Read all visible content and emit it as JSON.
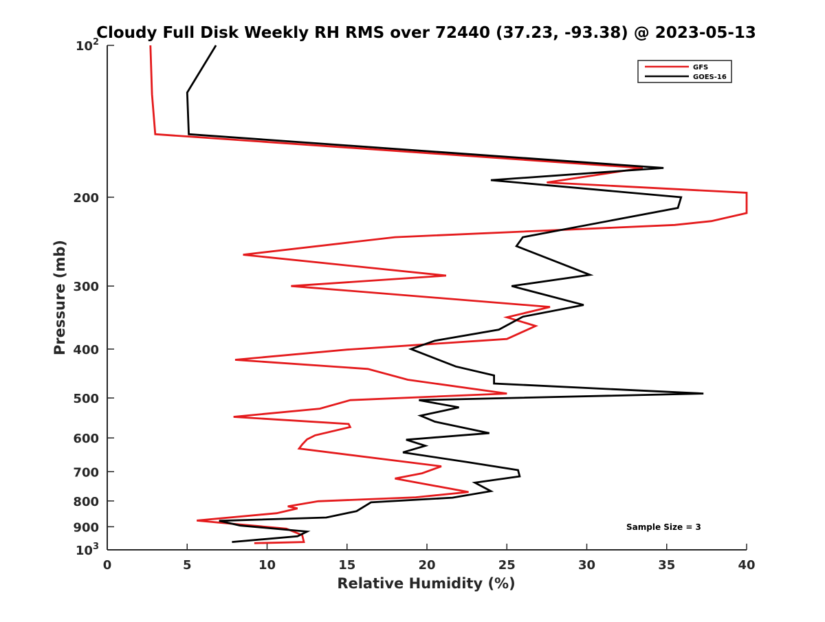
{
  "chart_data": {
    "type": "line",
    "title": "Cloudy Full Disk Weekly RH RMS over 72440 (37.23, -93.38) @ 2023-05-13",
    "xlabel": "Relative Humidity (%)",
    "ylabel": "Pressure (mb)",
    "xlim": [
      0,
      40
    ],
    "ylim": [
      100,
      1000
    ],
    "y_scale": "log",
    "y_reversed": true,
    "grid": false,
    "legend_position": "top-right",
    "x_ticks": [
      {
        "value": 0,
        "label": "0"
      },
      {
        "value": 5,
        "label": "5"
      },
      {
        "value": 10,
        "label": "10"
      },
      {
        "value": 15,
        "label": "15"
      },
      {
        "value": 20,
        "label": "20"
      },
      {
        "value": 25,
        "label": "25"
      },
      {
        "value": 30,
        "label": "30"
      },
      {
        "value": 35,
        "label": "35"
      },
      {
        "value": 40,
        "label": "40"
      }
    ],
    "y_ticks": [
      {
        "value": 100,
        "base": "10",
        "exp": "2"
      },
      {
        "value": 200,
        "label": "200"
      },
      {
        "value": 300,
        "label": "300"
      },
      {
        "value": 400,
        "label": "400"
      },
      {
        "value": 500,
        "label": "500"
      },
      {
        "value": 600,
        "label": "600"
      },
      {
        "value": 700,
        "label": "700"
      },
      {
        "value": 800,
        "label": "800"
      },
      {
        "value": 900,
        "label": "900"
      },
      {
        "value": 1000,
        "base": "10",
        "exp": "3"
      }
    ],
    "annotation": "Sample Size = 3",
    "series": [
      {
        "name": "GFS",
        "color": "#e41a1c",
        "points": [
          [
            2.7,
            100
          ],
          [
            2.8,
            125
          ],
          [
            3.0,
            150
          ],
          [
            33.5,
            175
          ],
          [
            27.5,
            187
          ],
          [
            40,
            196
          ],
          [
            40,
            215
          ],
          [
            37.8,
            223
          ],
          [
            35.5,
            227
          ],
          [
            18.0,
            240
          ],
          [
            8.5,
            260
          ],
          [
            21.2,
            286
          ],
          [
            11.5,
            300
          ],
          [
            27.7,
            330
          ],
          [
            25.0,
            346
          ],
          [
            26.8,
            360
          ],
          [
            25.0,
            382
          ],
          [
            15.0,
            401
          ],
          [
            8.0,
            420
          ],
          [
            16.3,
            438
          ],
          [
            18.8,
            460
          ],
          [
            25.0,
            490
          ],
          [
            15.2,
            505
          ],
          [
            13.3,
            525
          ],
          [
            7.9,
            545
          ],
          [
            15.1,
            563
          ],
          [
            15.2,
            571
          ],
          [
            13.0,
            593
          ],
          [
            12.5,
            604
          ],
          [
            12.2,
            618
          ],
          [
            12.0,
            630
          ],
          [
            20.9,
            683
          ],
          [
            19.7,
            705
          ],
          [
            18.0,
            722
          ],
          [
            22.6,
            768
          ],
          [
            19.3,
            787
          ],
          [
            13.2,
            801
          ],
          [
            11.3,
            820
          ],
          [
            11.9,
            828
          ],
          [
            10.6,
            846
          ],
          [
            5.6,
            875
          ],
          [
            11.2,
            908
          ],
          [
            12.2,
            935
          ],
          [
            12.3,
            965
          ],
          [
            9.2,
            970
          ]
        ]
      },
      {
        "name": "GOES-16",
        "color": "#000000",
        "points": [
          [
            6.8,
            100
          ],
          [
            5.0,
            124
          ],
          [
            5.1,
            150
          ],
          [
            34.8,
            175
          ],
          [
            24.0,
            185
          ],
          [
            35.9,
            200
          ],
          [
            35.7,
            210
          ],
          [
            26.0,
            240
          ],
          [
            25.6,
            250
          ],
          [
            30.2,
            285
          ],
          [
            25.3,
            300
          ],
          [
            29.8,
            327
          ],
          [
            26.0,
            345
          ],
          [
            24.5,
            366
          ],
          [
            20.5,
            385
          ],
          [
            19.0,
            400
          ],
          [
            21.8,
            433
          ],
          [
            24.2,
            451
          ],
          [
            24.2,
            468
          ],
          [
            37.3,
            490
          ],
          [
            19.5,
            505
          ],
          [
            22.0,
            522
          ],
          [
            19.6,
            542
          ],
          [
            20.5,
            557
          ],
          [
            23.9,
            587
          ],
          [
            18.7,
            605
          ],
          [
            19.9,
            622
          ],
          [
            18.5,
            641
          ],
          [
            22.5,
            670
          ],
          [
            25.7,
            695
          ],
          [
            25.8,
            715
          ],
          [
            23.0,
            736
          ],
          [
            24.0,
            765
          ],
          [
            21.6,
            788
          ],
          [
            16.5,
            805
          ],
          [
            15.6,
            838
          ],
          [
            13.7,
            863
          ],
          [
            7.0,
            876
          ],
          [
            8.3,
            895
          ],
          [
            12.5,
            920
          ],
          [
            11.9,
            940
          ],
          [
            7.8,
            965
          ]
        ]
      }
    ]
  }
}
